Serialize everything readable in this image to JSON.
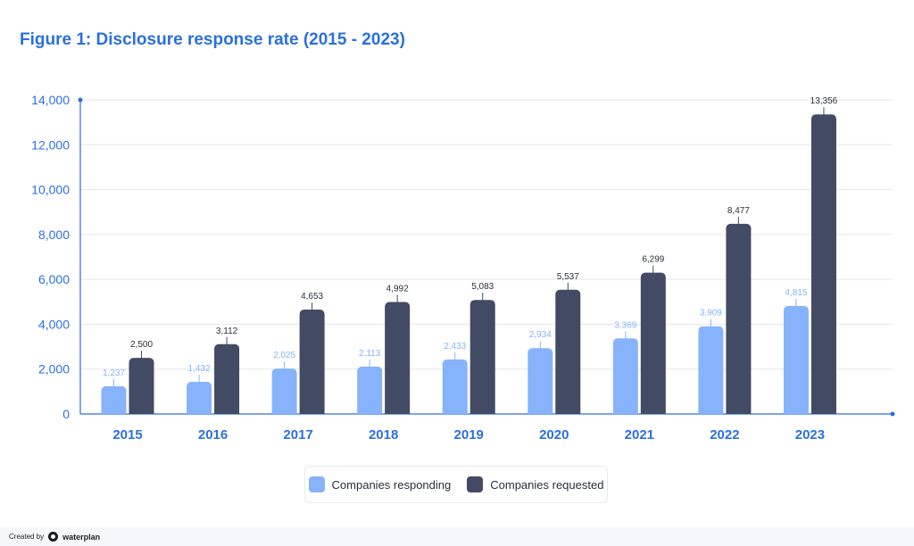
{
  "header": {
    "title": "Figure 1: Disclosure response rate (2015 - 2023)"
  },
  "chart_data": {
    "type": "bar",
    "categories": [
      "2015",
      "2016",
      "2017",
      "2018",
      "2019",
      "2020",
      "2021",
      "2022",
      "2023"
    ],
    "series": [
      {
        "name": "Companies responding",
        "color": "#86b3fb",
        "label_color": "#86b3fb",
        "values": [
          1237,
          1432,
          2025,
          2113,
          2433,
          2934,
          3369,
          3909,
          4815
        ],
        "labels": [
          "1,237",
          "1,432",
          "2,025",
          "2,113",
          "2,433",
          "2,934",
          "3,369",
          "3,909",
          "4,815"
        ]
      },
      {
        "name": "Companies requested",
        "color": "#434a63",
        "label_color": "#2b2f3a",
        "values": [
          2500,
          3112,
          4653,
          4992,
          5083,
          5537,
          6299,
          8477,
          13356
        ],
        "labels": [
          "2,500",
          "3,112",
          "4,653",
          "4,992",
          "5,083",
          "5,537",
          "6,299",
          "8,477",
          "13,356"
        ]
      }
    ],
    "ylim": [
      0,
      14000
    ],
    "yticks": [
      0,
      2000,
      4000,
      6000,
      8000,
      10000,
      12000,
      14000
    ],
    "ytick_labels": [
      "0",
      "2,000",
      "4,000",
      "6,000",
      "8,000",
      "10,000",
      "12,000",
      "14,000"
    ],
    "axis_color": "#2a6fe0",
    "grid": true,
    "legend_position": "bottom"
  },
  "legend": {
    "responding_label": "Companies responding",
    "requested_label": "Companies requested"
  },
  "footer": {
    "created_by": "Created by",
    "brand": "waterplan"
  }
}
